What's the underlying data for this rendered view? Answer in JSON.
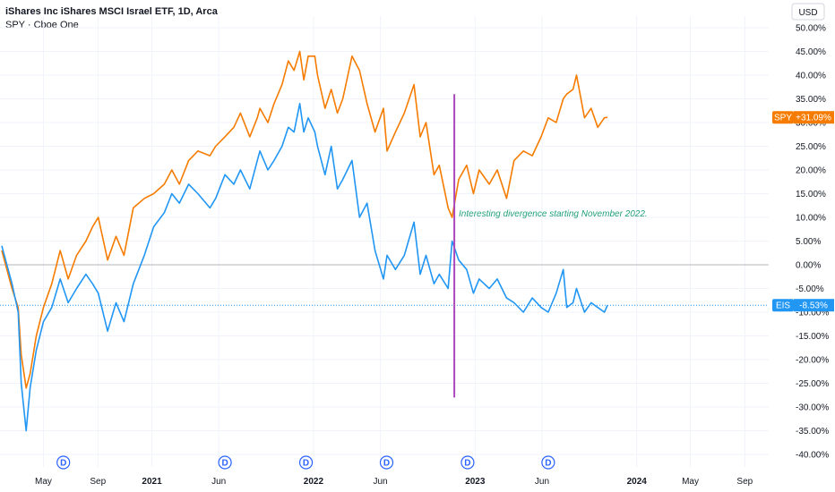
{
  "legend": {
    "title": "iShares Inc iShares MSCI Israel ETF, 1D, Arca",
    "compare": "SPY · Cboe One"
  },
  "currency_button": "USD",
  "annotation": "Interesting divergence starting November 2022.",
  "chart_data": {
    "type": "line",
    "title": "iShares Inc iShares MSCI Israel ETF, 1D, Arca",
    "ylabel": "",
    "xlabel": "",
    "ylim": [
      -40,
      50
    ],
    "y_ticks": [
      "50.00%",
      "45.00%",
      "40.00%",
      "35.00%",
      "30.00%",
      "25.00%",
      "20.00%",
      "15.00%",
      "10.00%",
      "5.00%",
      "0.00%",
      "-5.00%",
      "-10.00%",
      "-15.00%",
      "-20.00%",
      "-25.00%",
      "-30.00%",
      "-35.00%",
      "-40.00%"
    ],
    "y_tick_values": [
      50,
      45,
      40,
      35,
      30,
      25,
      20,
      15,
      10,
      5,
      0,
      -5,
      -10,
      -15,
      -20,
      -25,
      -30,
      -35,
      -40
    ],
    "x_ticks": [
      {
        "label": "May",
        "date": "2020-05-01",
        "bold": false
      },
      {
        "label": "Sep",
        "date": "2020-09-01",
        "bold": false
      },
      {
        "label": "2021",
        "date": "2021-01-01",
        "bold": true
      },
      {
        "label": "Jun",
        "date": "2021-06-01",
        "bold": false
      },
      {
        "label": "2022",
        "date": "2022-01-01",
        "bold": true
      },
      {
        "label": "Jun",
        "date": "2022-06-01",
        "bold": false
      },
      {
        "label": "2023",
        "date": "2023-01-01",
        "bold": true
      },
      {
        "label": "Jun",
        "date": "2023-06-01",
        "bold": false
      },
      {
        "label": "2024",
        "date": "2024-01-01",
        "bold": true
      },
      {
        "label": "May",
        "date": "2024-05-01",
        "bold": false
      },
      {
        "label": "Sep",
        "date": "2024-09-01",
        "bold": false
      }
    ],
    "xrange": [
      "2020-01-28",
      "2024-10-25"
    ],
    "dividend_markers": [
      "2020-06-15",
      "2021-06-15",
      "2021-12-15",
      "2022-06-15",
      "2022-12-15",
      "2023-06-15"
    ],
    "vertical_line": {
      "date": "2022-11-15",
      "y_top": 36,
      "y_bottom": -28,
      "color": "#ab47bc"
    },
    "annotation_point": {
      "date": "2022-11-25",
      "y": 10.2
    },
    "grid": true,
    "series": [
      {
        "name": "SPY",
        "color": "#f57c00",
        "last_value_label": "+31.09%",
        "last_value": 31.09,
        "x": [
          "2020-01-28",
          "2020-02-20",
          "2020-03-05",
          "2020-03-12",
          "2020-03-23",
          "2020-04-01",
          "2020-04-15",
          "2020-05-01",
          "2020-05-20",
          "2020-06-08",
          "2020-06-26",
          "2020-07-15",
          "2020-08-05",
          "2020-08-20",
          "2020-09-02",
          "2020-09-23",
          "2020-10-12",
          "2020-10-30",
          "2020-11-20",
          "2020-12-15",
          "2021-01-05",
          "2021-01-29",
          "2021-02-15",
          "2021-03-04",
          "2021-03-25",
          "2021-04-15",
          "2021-05-12",
          "2021-05-25",
          "2021-06-15",
          "2021-07-05",
          "2021-07-20",
          "2021-08-10",
          "2021-08-27",
          "2021-09-02",
          "2021-09-20",
          "2021-10-04",
          "2021-10-22",
          "2021-11-05",
          "2021-11-18",
          "2021-12-01",
          "2021-12-10",
          "2021-12-20",
          "2022-01-04",
          "2022-01-10",
          "2022-01-27",
          "2022-02-10",
          "2022-02-24",
          "2022-03-08",
          "2022-03-29",
          "2022-04-15",
          "2022-05-02",
          "2022-05-20",
          "2022-06-08",
          "2022-06-16",
          "2022-07-05",
          "2022-07-25",
          "2022-08-16",
          "2022-08-30",
          "2022-09-12",
          "2022-09-30",
          "2022-10-12",
          "2022-11-01",
          "2022-11-10",
          "2022-11-25",
          "2022-12-13",
          "2022-12-28",
          "2023-01-10",
          "2023-02-02",
          "2023-02-20",
          "2023-03-13",
          "2023-03-30",
          "2023-04-20",
          "2023-05-10",
          "2023-05-30",
          "2023-06-15",
          "2023-07-03",
          "2023-07-19",
          "2023-07-27",
          "2023-08-10",
          "2023-08-18",
          "2023-09-05",
          "2023-09-20",
          "2023-10-05",
          "2023-10-20",
          "2023-10-27"
        ],
        "values": [
          3,
          -5,
          -9,
          -19,
          -26,
          -23,
          -15,
          -9,
          -4,
          3,
          -3,
          2,
          5,
          8,
          10,
          1,
          6,
          2,
          12,
          14,
          15,
          17,
          20,
          17,
          22,
          24,
          23,
          25,
          27,
          29,
          32,
          27,
          31,
          33,
          30,
          34,
          38,
          43,
          41,
          45,
          39,
          44,
          44,
          40,
          33,
          37,
          32,
          35,
          44,
          41,
          34,
          28,
          33,
          24,
          28,
          32,
          38,
          27,
          30,
          19,
          21,
          12,
          10,
          18,
          21,
          15,
          20,
          17,
          20,
          14,
          22,
          24,
          23,
          27,
          31,
          30,
          35,
          36,
          37,
          40,
          31,
          33,
          29,
          31,
          31.09
        ]
      },
      {
        "name": "EIS",
        "color": "#2196f3",
        "last_value_label": "-8.53%",
        "last_value": -8.53,
        "x": [
          "2020-01-28",
          "2020-02-20",
          "2020-03-05",
          "2020-03-12",
          "2020-03-23",
          "2020-04-01",
          "2020-04-15",
          "2020-05-01",
          "2020-05-20",
          "2020-06-08",
          "2020-06-26",
          "2020-07-15",
          "2020-08-05",
          "2020-08-20",
          "2020-09-02",
          "2020-09-23",
          "2020-10-12",
          "2020-10-30",
          "2020-11-20",
          "2020-12-15",
          "2021-01-05",
          "2021-01-29",
          "2021-02-15",
          "2021-03-04",
          "2021-03-25",
          "2021-04-15",
          "2021-05-12",
          "2021-05-25",
          "2021-06-15",
          "2021-07-05",
          "2021-07-20",
          "2021-08-10",
          "2021-08-27",
          "2021-09-02",
          "2021-09-20",
          "2021-10-04",
          "2021-10-22",
          "2021-11-05",
          "2021-11-18",
          "2021-12-01",
          "2021-12-10",
          "2021-12-20",
          "2022-01-04",
          "2022-01-10",
          "2022-01-27",
          "2022-02-10",
          "2022-02-24",
          "2022-03-08",
          "2022-03-29",
          "2022-04-15",
          "2022-05-02",
          "2022-05-20",
          "2022-06-08",
          "2022-06-16",
          "2022-07-05",
          "2022-07-25",
          "2022-08-16",
          "2022-08-30",
          "2022-09-12",
          "2022-09-30",
          "2022-10-12",
          "2022-11-01",
          "2022-11-10",
          "2022-11-25",
          "2022-12-13",
          "2022-12-28",
          "2023-01-10",
          "2023-02-02",
          "2023-02-20",
          "2023-03-13",
          "2023-03-30",
          "2023-04-20",
          "2023-05-10",
          "2023-05-30",
          "2023-06-15",
          "2023-07-03",
          "2023-07-19",
          "2023-07-27",
          "2023-08-10",
          "2023-08-18",
          "2023-09-05",
          "2023-09-20",
          "2023-10-05",
          "2023-10-20",
          "2023-10-27"
        ],
        "values": [
          4,
          -4,
          -10,
          -25,
          -35,
          -26,
          -18,
          -12,
          -9,
          -3,
          -8,
          -5,
          -2,
          -4,
          -6,
          -14,
          -8,
          -12,
          -4,
          2,
          8,
          11,
          15,
          13,
          17,
          15,
          12,
          14,
          19,
          17,
          20,
          16,
          22,
          24,
          20,
          22,
          25,
          29,
          28,
          34,
          28,
          31,
          28,
          25,
          19,
          25,
          16,
          18,
          22,
          10,
          13,
          3,
          -3,
          2,
          -1,
          2,
          9,
          -2,
          2,
          -4,
          -2,
          -5,
          5,
          1,
          -1,
          -6,
          -3,
          -5,
          -3,
          -7,
          -8,
          -10,
          -7,
          -9,
          -10,
          -6,
          -1,
          -9,
          -8,
          -5,
          -10,
          -8,
          -9,
          -10,
          -8.53
        ]
      }
    ]
  }
}
